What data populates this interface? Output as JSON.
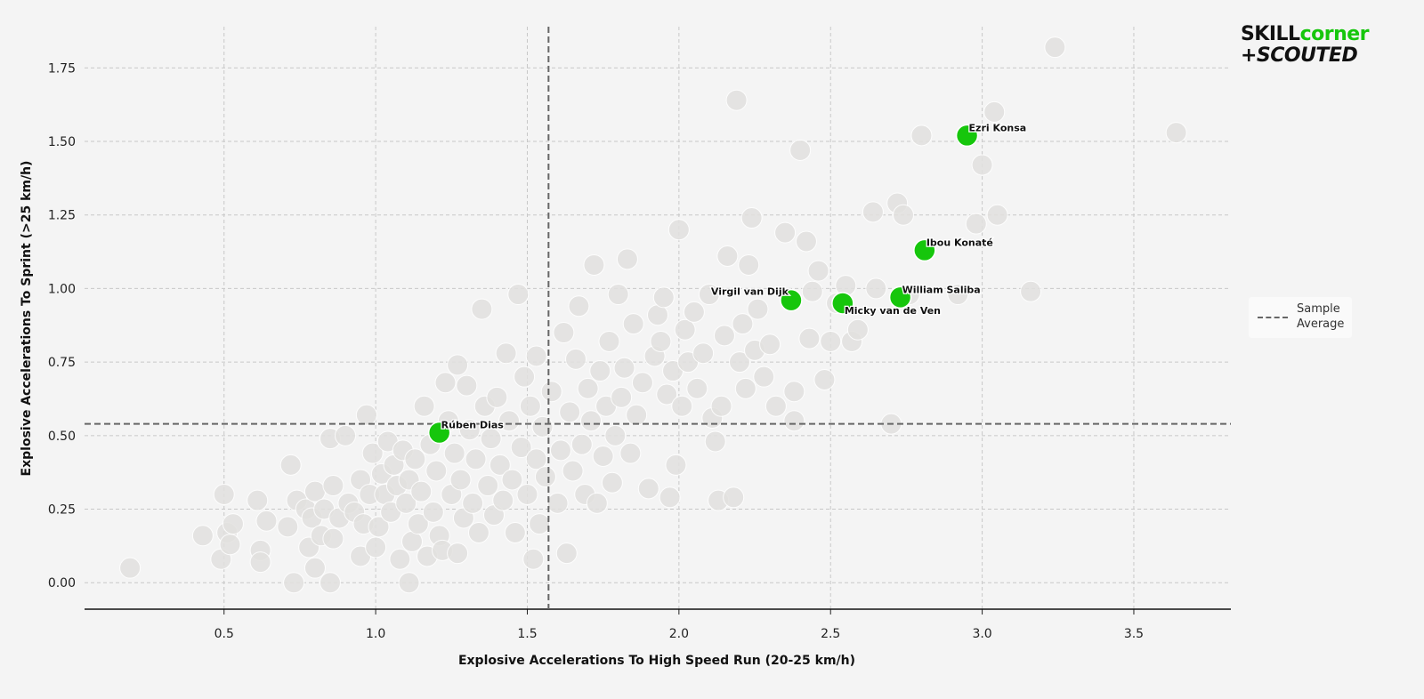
{
  "brand": {
    "line1_part1": "SKILL",
    "line1_part2": "corner",
    "line2": "+SCOUTED"
  },
  "colors": {
    "background": "#f4f4f4",
    "highlight": "#16c60c",
    "point": "#e2e1df",
    "point_stroke": "#ffffff",
    "average": "#666666",
    "grid": "#c8c8c8"
  },
  "legend": {
    "items": [
      {
        "label_line1": "Sample",
        "label_line2": "Average",
        "style": "dashed"
      }
    ],
    "placement": "right"
  },
  "chart_data": {
    "type": "scatter",
    "title": "",
    "xlabel": "Explosive Accelerations To High Speed Run (20-25 km/h)",
    "ylabel": "Explosive Accelerations To Sprint (>25 km/h)",
    "xlim": [
      0.04,
      3.82
    ],
    "ylim": [
      -0.09,
      1.89
    ],
    "xticks": [
      "0.5",
      "1.0",
      "1.5",
      "2.0",
      "2.5",
      "3.0",
      "3.5"
    ],
    "yticks": [
      "0.00",
      "0.25",
      "0.50",
      "0.75",
      "1.00",
      "1.25",
      "1.50",
      "1.75"
    ],
    "grid": true,
    "averages": {
      "x": 1.57,
      "y": 0.54
    },
    "highlighted": [
      {
        "name": "Ezri Konsa",
        "x": 2.95,
        "y": 1.52
      },
      {
        "name": "Ibou Konaté",
        "x": 2.81,
        "y": 1.13
      },
      {
        "name": "Virgil van Dijk",
        "x": 2.37,
        "y": 0.96
      },
      {
        "name": "Micky van de Ven",
        "x": 2.54,
        "y": 0.95
      },
      {
        "name": "William Saliba",
        "x": 2.73,
        "y": 0.97
      },
      {
        "name": "Rúben Dias",
        "x": 1.21,
        "y": 0.51
      }
    ],
    "others": [
      [
        0.19,
        0.05
      ],
      [
        0.43,
        0.16
      ],
      [
        0.49,
        0.08
      ],
      [
        0.5,
        0.3
      ],
      [
        0.51,
        0.17
      ],
      [
        0.52,
        0.13
      ],
      [
        0.53,
        0.2
      ],
      [
        0.61,
        0.28
      ],
      [
        0.62,
        0.11
      ],
      [
        0.62,
        0.07
      ],
      [
        0.64,
        0.21
      ],
      [
        0.71,
        0.19
      ],
      [
        0.72,
        0.4
      ],
      [
        0.73,
        0.0
      ],
      [
        0.74,
        0.28
      ],
      [
        0.77,
        0.25
      ],
      [
        0.78,
        0.12
      ],
      [
        0.79,
        0.22
      ],
      [
        0.8,
        0.05
      ],
      [
        0.8,
        0.31
      ],
      [
        0.82,
        0.16
      ],
      [
        0.83,
        0.25
      ],
      [
        0.85,
        0.0
      ],
      [
        0.85,
        0.49
      ],
      [
        0.86,
        0.15
      ],
      [
        0.86,
        0.33
      ],
      [
        0.88,
        0.22
      ],
      [
        0.9,
        0.5
      ],
      [
        0.91,
        0.27
      ],
      [
        0.93,
        0.24
      ],
      [
        0.95,
        0.09
      ],
      [
        0.95,
        0.35
      ],
      [
        0.96,
        0.2
      ],
      [
        0.97,
        0.57
      ],
      [
        0.98,
        0.3
      ],
      [
        0.99,
        0.44
      ],
      [
        1.0,
        0.12
      ],
      [
        1.01,
        0.19
      ],
      [
        1.02,
        0.37
      ],
      [
        1.03,
        0.3
      ],
      [
        1.04,
        0.48
      ],
      [
        1.05,
        0.24
      ],
      [
        1.06,
        0.4
      ],
      [
        1.07,
        0.33
      ],
      [
        1.08,
        0.08
      ],
      [
        1.09,
        0.45
      ],
      [
        1.1,
        0.27
      ],
      [
        1.11,
        0.0
      ],
      [
        1.11,
        0.35
      ],
      [
        1.12,
        0.14
      ],
      [
        1.13,
        0.42
      ],
      [
        1.14,
        0.2
      ],
      [
        1.15,
        0.31
      ],
      [
        1.16,
        0.6
      ],
      [
        1.17,
        0.09
      ],
      [
        1.18,
        0.47
      ],
      [
        1.19,
        0.24
      ],
      [
        1.2,
        0.38
      ],
      [
        1.21,
        0.16
      ],
      [
        1.22,
        0.11
      ],
      [
        1.23,
        0.68
      ],
      [
        1.24,
        0.55
      ],
      [
        1.25,
        0.3
      ],
      [
        1.26,
        0.44
      ],
      [
        1.27,
        0.74
      ],
      [
        1.27,
        0.1
      ],
      [
        1.28,
        0.35
      ],
      [
        1.29,
        0.22
      ],
      [
        1.3,
        0.67
      ],
      [
        1.31,
        0.52
      ],
      [
        1.32,
        0.27
      ],
      [
        1.33,
        0.42
      ],
      [
        1.34,
        0.17
      ],
      [
        1.35,
        0.93
      ],
      [
        1.36,
        0.6
      ],
      [
        1.37,
        0.33
      ],
      [
        1.38,
        0.49
      ],
      [
        1.39,
        0.23
      ],
      [
        1.4,
        0.63
      ],
      [
        1.41,
        0.4
      ],
      [
        1.42,
        0.28
      ],
      [
        1.43,
        0.78
      ],
      [
        1.44,
        0.55
      ],
      [
        1.45,
        0.35
      ],
      [
        1.46,
        0.17
      ],
      [
        1.47,
        0.98
      ],
      [
        1.48,
        0.46
      ],
      [
        1.49,
        0.7
      ],
      [
        1.5,
        0.3
      ],
      [
        1.51,
        0.6
      ],
      [
        1.52,
        0.08
      ],
      [
        1.53,
        0.42
      ],
      [
        1.53,
        0.77
      ],
      [
        1.54,
        0.2
      ],
      [
        1.55,
        0.53
      ],
      [
        1.56,
        0.36
      ],
      [
        1.58,
        0.65
      ],
      [
        1.6,
        0.27
      ],
      [
        1.61,
        0.45
      ],
      [
        1.62,
        0.85
      ],
      [
        1.63,
        0.1
      ],
      [
        1.64,
        0.58
      ],
      [
        1.65,
        0.38
      ],
      [
        1.66,
        0.76
      ],
      [
        1.67,
        0.94
      ],
      [
        1.68,
        0.47
      ],
      [
        1.69,
        0.3
      ],
      [
        1.7,
        0.66
      ],
      [
        1.71,
        0.55
      ],
      [
        1.72,
        1.08
      ],
      [
        1.73,
        0.27
      ],
      [
        1.74,
        0.72
      ],
      [
        1.75,
        0.43
      ],
      [
        1.76,
        0.6
      ],
      [
        1.77,
        0.82
      ],
      [
        1.78,
        0.34
      ],
      [
        1.79,
        0.5
      ],
      [
        1.8,
        0.98
      ],
      [
        1.81,
        0.63
      ],
      [
        1.82,
        0.73
      ],
      [
        1.83,
        1.1
      ],
      [
        1.84,
        0.44
      ],
      [
        1.85,
        0.88
      ],
      [
        1.86,
        0.57
      ],
      [
        1.88,
        0.68
      ],
      [
        1.9,
        0.32
      ],
      [
        1.92,
        0.77
      ],
      [
        1.93,
        0.91
      ],
      [
        1.94,
        0.82
      ],
      [
        1.95,
        0.97
      ],
      [
        1.96,
        0.64
      ],
      [
        1.97,
        0.29
      ],
      [
        1.98,
        0.72
      ],
      [
        1.99,
        0.4
      ],
      [
        2.0,
        1.2
      ],
      [
        2.01,
        0.6
      ],
      [
        2.02,
        0.86
      ],
      [
        2.03,
        0.75
      ],
      [
        2.05,
        0.92
      ],
      [
        2.06,
        0.66
      ],
      [
        2.08,
        0.78
      ],
      [
        2.1,
        0.98
      ],
      [
        2.11,
        0.56
      ],
      [
        2.12,
        0.48
      ],
      [
        2.13,
        0.28
      ],
      [
        2.14,
        0.6
      ],
      [
        2.15,
        0.84
      ],
      [
        2.16,
        1.11
      ],
      [
        2.18,
        0.29
      ],
      [
        2.19,
        1.64
      ],
      [
        2.2,
        0.75
      ],
      [
        2.21,
        0.88
      ],
      [
        2.22,
        0.66
      ],
      [
        2.23,
        1.08
      ],
      [
        2.24,
        1.24
      ],
      [
        2.25,
        0.79
      ],
      [
        2.26,
        0.93
      ],
      [
        2.28,
        0.7
      ],
      [
        2.3,
        0.81
      ],
      [
        2.32,
        0.6
      ],
      [
        2.35,
        1.19
      ],
      [
        2.38,
        0.55
      ],
      [
        2.38,
        0.65
      ],
      [
        2.4,
        1.47
      ],
      [
        2.42,
        1.16
      ],
      [
        2.43,
        0.83
      ],
      [
        2.44,
        0.99
      ],
      [
        2.46,
        1.06
      ],
      [
        2.48,
        0.69
      ],
      [
        2.5,
        0.82
      ],
      [
        2.52,
        0.95
      ],
      [
        2.55,
        1.01
      ],
      [
        2.57,
        0.82
      ],
      [
        2.59,
        0.86
      ],
      [
        2.64,
        1.26
      ],
      [
        2.65,
        1.0
      ],
      [
        2.7,
        0.54
      ],
      [
        2.72,
        1.29
      ],
      [
        2.74,
        1.25
      ],
      [
        2.76,
        0.98
      ],
      [
        2.8,
        1.52
      ],
      [
        2.92,
        0.98
      ],
      [
        2.98,
        1.22
      ],
      [
        3.0,
        1.42
      ],
      [
        3.04,
        1.6
      ],
      [
        3.05,
        1.25
      ],
      [
        3.16,
        0.99
      ],
      [
        3.24,
        1.82
      ],
      [
        3.64,
        1.53
      ]
    ]
  }
}
